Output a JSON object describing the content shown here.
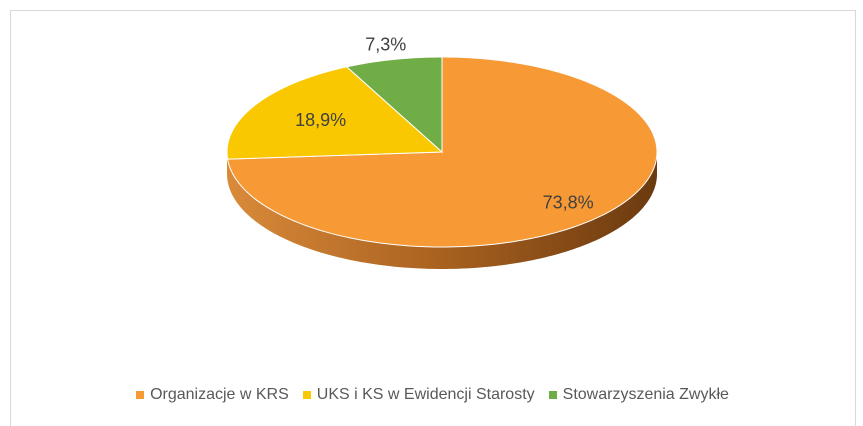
{
  "chart_data": {
    "type": "pie",
    "categories": [
      "Organizacje w KRS",
      "UKS i KS w Ewidencji Starosty",
      "Stowarzyszenia Zwykłe"
    ],
    "values": [
      73.8,
      18.9,
      7.3
    ],
    "value_labels": [
      "73,8%",
      "18,9%",
      "7,3%"
    ],
    "colors": [
      "#f79a35",
      "#f9c800",
      "#70ad47"
    ],
    "legend": "bottom"
  }
}
